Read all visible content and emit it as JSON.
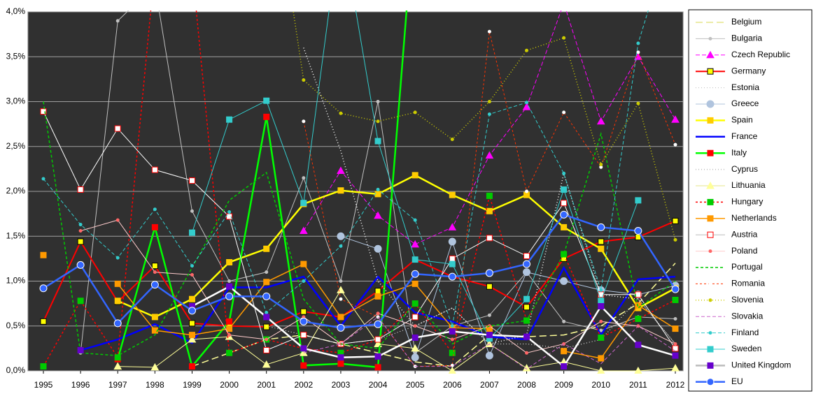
{
  "chart_data": {
    "type": "line",
    "categories": [
      "1995",
      "1996",
      "1997",
      "1998",
      "1999",
      "2000",
      "2001",
      "2002",
      "2003",
      "2004",
      "2005",
      "2006",
      "2007",
      "2008",
      "2009",
      "2010",
      "2011",
      "2012"
    ],
    "ylim": [
      0,
      4
    ],
    "yticks": [
      {
        "value": 0,
        "label": "0,0%"
      },
      {
        "value": 0.5,
        "label": "0,5%"
      },
      {
        "value": 1,
        "label": "1,0%"
      },
      {
        "value": 1.5,
        "label": "1,5%"
      },
      {
        "value": 2,
        "label": "2,0%"
      },
      {
        "value": 2.5,
        "label": "2,5%"
      },
      {
        "value": 3,
        "label": "3,0%"
      },
      {
        "value": 3.5,
        "label": "3,5%"
      },
      {
        "value": 4,
        "label": "4,0%"
      }
    ],
    "grid": true,
    "legend": "right",
    "series": [
      {
        "name": "Belgium",
        "color": "#ffff99",
        "dash": "10,5",
        "width": 1.5,
        "marker": "none",
        "mfill": "#ffff99",
        "values": [
          null,
          null,
          null,
          null,
          0.05,
          0.2,
          0.35,
          0.4,
          0.3,
          0.2,
          0.1,
          0.05,
          0.4,
          0.38,
          0.4,
          0.5,
          0.75,
          1.2
        ]
      },
      {
        "name": "Bulgaria",
        "color": "#c0c0c0",
        "dash": "",
        "width": 1,
        "marker": "dot",
        "mfill": "#c0c0c0",
        "values": [
          null,
          0.2,
          3.9,
          4.3,
          1.78,
          1.0,
          1.1,
          2.15,
          1.0,
          3.0,
          0.2,
          0.5,
          0.62,
          1.1,
          0.55,
          0.45,
          0.6,
          0.58
        ]
      },
      {
        "name": "Czech Republic",
        "color": "#ff00ff",
        "dash": "6,3",
        "width": 1,
        "marker": "triangle",
        "mfill": "#ff00ff",
        "values": [
          null,
          null,
          null,
          null,
          null,
          null,
          null,
          1.56,
          2.23,
          1.73,
          1.41,
          1.6,
          2.4,
          2.94,
          4.1,
          2.78,
          3.5,
          2.8
        ]
      },
      {
        "name": "Germany",
        "color": "#ff0000",
        "dash": "",
        "width": 2,
        "marker": "square",
        "mfill": "#ffff00",
        "mstroke": "#000000",
        "values": [
          0.55,
          1.44,
          0.77,
          1.17,
          0.53,
          0.5,
          0.49,
          0.66,
          0.6,
          0.89,
          1.24,
          1.05,
          0.94,
          0.71,
          1.25,
          1.44,
          1.49,
          1.67
        ]
      },
      {
        "name": "Estonia",
        "color": "#ffffff",
        "dash": "1,3",
        "width": 1,
        "marker": "none",
        "mfill": "#ffffff",
        "values": [
          null,
          null,
          null,
          null,
          null,
          null,
          0.5,
          0.4,
          0.3,
          0.35,
          0.5,
          0.7,
          0.3,
          0.3,
          0.25,
          0.35,
          0.8,
          0.3
        ]
      },
      {
        "name": "Greece",
        "color": "#b0c4de",
        "dash": "",
        "width": 1,
        "marker": "circle",
        "mfill": "#b0c4de",
        "values": [
          null,
          null,
          null,
          null,
          null,
          null,
          null,
          null,
          1.5,
          1.36,
          0.15,
          1.44,
          0.17,
          1.1,
          1.0,
          0.9,
          0.85,
          0.95
        ]
      },
      {
        "name": "Spain",
        "color": "#ffff00",
        "dash": "",
        "width": 2.5,
        "marker": "square",
        "mfill": "#ffcc00",
        "values": [
          null,
          null,
          0.78,
          0.6,
          0.8,
          1.21,
          1.36,
          1.86,
          2.01,
          1.97,
          2.18,
          1.96,
          1.78,
          1.96,
          1.6,
          1.36,
          0.7,
          0.92
        ]
      },
      {
        "name": "France",
        "color": "#0000ff",
        "dash": "",
        "width": 2.5,
        "marker": "none",
        "mfill": "#0000ff",
        "values": [
          null,
          0.23,
          0.35,
          0.52,
          0.31,
          0.93,
          0.93,
          1.05,
          0.5,
          1.05,
          0.65,
          0.55,
          0.38,
          0.35,
          1.15,
          0.4,
          1.02,
          1.05
        ]
      },
      {
        "name": "Italy",
        "color": "#00ff00",
        "dash": "",
        "width": 2.5,
        "marker": "square",
        "mfill": "#ff0000",
        "values": [
          null,
          null,
          0.13,
          1.6,
          0.05,
          0.55,
          2.83,
          0.06,
          0.08,
          0.04,
          5.2,
          null,
          null,
          null,
          null,
          null,
          null,
          null
        ]
      },
      {
        "name": "Cyprus",
        "color": "#ffffff",
        "dash": "1,3",
        "width": 1.5,
        "marker": "none",
        "mfill": "#ffffff",
        "values": [
          null,
          null,
          null,
          null,
          null,
          null,
          null,
          3.6,
          2.45,
          1.0,
          0.5,
          0.7,
          0.3,
          0.4,
          2.2,
          0.85,
          0.8,
          0.3
        ]
      },
      {
        "name": "Lithuania",
        "color": "#ffff99",
        "dash": "",
        "width": 1,
        "marker": "triangle",
        "mfill": "#ffff99",
        "values": [
          null,
          null,
          0.05,
          0.04,
          0.35,
          0.38,
          0.07,
          0.2,
          0.9,
          0.3,
          0.25,
          0.0,
          0.3,
          0.03,
          0.1,
          0.0,
          0.0,
          0.03
        ]
      },
      {
        "name": "Hungary",
        "color": "#ff0000",
        "dash": "3,3",
        "width": 1.5,
        "marker": "square",
        "mfill": "#00cc00",
        "values": [
          0.05,
          0.78,
          0.15,
          4.5,
          4.5,
          0.2,
          0.35,
          0.25,
          0.2,
          0.35,
          0.75,
          0.2,
          1.95,
          0.56,
          1.3,
          0.37,
          0.58,
          0.79
        ]
      },
      {
        "name": "Netherlands",
        "color": "#ff9900",
        "dash": "",
        "width": 1.5,
        "marker": "square",
        "mfill": "#ff9900",
        "values": [
          1.29,
          null,
          0.97,
          0.45,
          0.4,
          0.47,
          0.99,
          1.19,
          0.6,
          0.83,
          0.97,
          0.48,
          0.47,
          null,
          0.22,
          0.14,
          0.73,
          0.47
        ]
      },
      {
        "name": "Austria",
        "color": "#ffffff",
        "dash": "",
        "width": 1,
        "marker": "square",
        "mfill": "#ffffff",
        "mstroke": "#ff0000",
        "values": [
          2.89,
          2.02,
          2.7,
          2.24,
          2.12,
          1.72,
          0.23,
          0.4,
          0.3,
          0.35,
          0.6,
          1.25,
          1.48,
          1.28,
          1.87,
          0.85,
          0.85,
          0.25
        ]
      },
      {
        "name": "Poland",
        "color": "#ffcccc",
        "dash": "",
        "width": 1,
        "marker": "dot",
        "mfill": "#ff6666",
        "values": [
          null,
          1.56,
          1.68,
          1.1,
          1.07,
          0.4,
          0.35,
          0.6,
          0.3,
          0.64,
          0.5,
          0.35,
          0.5,
          0.2,
          0.3,
          0.55,
          0.5,
          0.3
        ]
      },
      {
        "name": "Portugal",
        "color": "#00cc00",
        "dash": "4,3",
        "width": 1.5,
        "marker": "none",
        "mfill": "#00cc00",
        "values": [
          3.0,
          0.2,
          0.17,
          0.4,
          1.15,
          1.9,
          2.21,
          0.8,
          0.3,
          0.25,
          0.76,
          0.3,
          0.5,
          0.56,
          1.3,
          2.64,
          0.7,
          1.0
        ]
      },
      {
        "name": "Romania",
        "color": "#ff3300",
        "dash": "3,3",
        "width": 1,
        "marker": "dot",
        "mfill": "#ffffff",
        "values": [
          null,
          null,
          null,
          null,
          null,
          null,
          null,
          2.78,
          0.8,
          0.6,
          0.05,
          0.06,
          3.78,
          2.0,
          2.88,
          2.27,
          3.55,
          2.52
        ]
      },
      {
        "name": "Slovenia",
        "color": "#cccc00",
        "dash": "1,3",
        "width": 1.5,
        "marker": "dot",
        "mfill": "#cccc00",
        "values": [
          null,
          null,
          null,
          null,
          null,
          null,
          6,
          3.24,
          2.87,
          2.78,
          2.88,
          2.58,
          3.0,
          3.57,
          3.71,
          2.3,
          2.98,
          1.46
        ]
      },
      {
        "name": "Slovakia",
        "color": "#cc66cc",
        "dash": "5,3",
        "width": 1,
        "marker": "none",
        "mfill": "#cc66cc",
        "values": [
          null,
          null,
          null,
          null,
          null,
          null,
          null,
          0.2,
          0.3,
          0.6,
          0.05,
          0.05,
          0.3,
          0.02,
          0.3,
          0.08,
          0.5,
          0.22
        ]
      },
      {
        "name": "Finland",
        "color": "#33cccc",
        "dash": "5,3",
        "width": 1,
        "marker": "dot",
        "mfill": "#33cccc",
        "values": [
          2.14,
          1.63,
          1.26,
          1.8,
          1.17,
          1.77,
          0.65,
          1.0,
          1.39,
          2.02,
          1.68,
          0.5,
          2.86,
          2.99,
          2.2,
          0.9,
          3.65,
          5
        ]
      },
      {
        "name": "Sweden",
        "color": "#33cccc",
        "dash": "",
        "width": 1,
        "marker": "square",
        "mfill": "#33cccc",
        "values": [
          null,
          null,
          null,
          null,
          1.54,
          2.8,
          3.01,
          1.87,
          5,
          2.56,
          1.24,
          1.19,
          0.36,
          0.8,
          2.02,
          0.78,
          1.9,
          null
        ]
      },
      {
        "name": "United Kingdom",
        "color": "#ffffff",
        "dash": "",
        "width": 2.5,
        "marker": "square",
        "mfill": "#6600cc",
        "values": [
          null,
          0.23,
          null,
          null,
          0.72,
          0.94,
          0.6,
          0.25,
          0.15,
          0.16,
          0.37,
          0.44,
          0.4,
          0.38,
          0.05,
          0.72,
          0.29,
          0.17
        ]
      },
      {
        "name": "EU",
        "color": "#3366ff",
        "dash": "",
        "width": 2.5,
        "marker": "circle",
        "mfill": "#3366ff",
        "mstroke": "#ffffff",
        "values": [
          0.92,
          1.18,
          0.53,
          0.96,
          0.67,
          0.83,
          0.83,
          0.55,
          0.48,
          0.52,
          1.08,
          1.05,
          1.09,
          1.19,
          1.74,
          1.6,
          1.56,
          0.91
        ]
      }
    ]
  }
}
